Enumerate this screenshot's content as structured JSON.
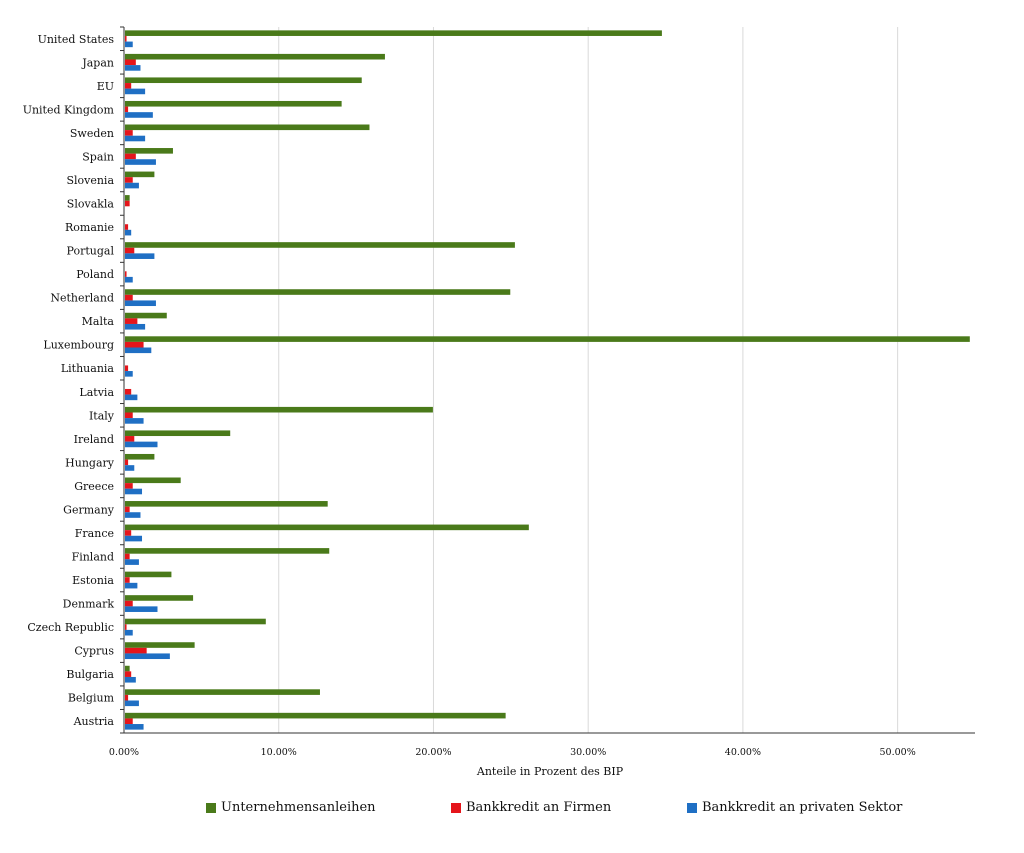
{
  "chart_data": {
    "type": "bar",
    "orientation": "horizontal",
    "title": "",
    "xlabel": "Anteile in Prozent des BIP",
    "ylabel": "",
    "xlim": [
      0,
      55
    ],
    "xticks": [
      "0.00%",
      "10.00%",
      "20.00%",
      "30.00%",
      "40.00%",
      "50.00%"
    ],
    "grid": true,
    "legend_position": "bottom",
    "categories": [
      "United States",
      "Japan",
      "EU",
      "United Kingdom",
      "Sweden",
      "Spain",
      "Slovenia",
      "Slovakla",
      "Romanie",
      "Portugal",
      "Poland",
      "Netherland",
      "Malta",
      "Luxembourg",
      "Lithuania",
      "Latvia",
      "Italy",
      "Ireland",
      "Hungary",
      "Greece",
      "Germany",
      "France",
      "Finland",
      "Estonia",
      "Denmark",
      "Czech Republic",
      "Cyprus",
      "Bulgaria",
      "Belgium",
      "Austria"
    ],
    "series": [
      {
        "name": "Unternehmensanleihen",
        "color": "#4a7a1a",
        "values": [
          34.7,
          16.8,
          15.3,
          14.0,
          15.8,
          3.1,
          1.9,
          0.3,
          0,
          25.2,
          0,
          24.9,
          2.7,
          54.6,
          0,
          0,
          19.9,
          6.8,
          1.9,
          3.6,
          13.1,
          26.1,
          13.2,
          3.0,
          4.4,
          9.1,
          4.5,
          0.3,
          12.6,
          24.6
        ]
      },
      {
        "name": "Bankkredit an Firmen",
        "color": "#e5151b",
        "values": [
          0.1,
          0.7,
          0.4,
          0.2,
          0.5,
          0.7,
          0.5,
          0.3,
          0.2,
          0.6,
          0.1,
          0.5,
          0.8,
          1.2,
          0.2,
          0.4,
          0.5,
          0.6,
          0.2,
          0.5,
          0.3,
          0.4,
          0.3,
          0.3,
          0.5,
          0.1,
          1.4,
          0.4,
          0.2,
          0.5
        ]
      },
      {
        "name": "Bankkredit an privaten Sektor",
        "color": "#1f6fc4",
        "values": [
          0.5,
          1.0,
          1.3,
          1.8,
          1.3,
          2.0,
          0.9,
          0,
          0.4,
          1.9,
          0.5,
          2.0,
          1.3,
          1.7,
          0.5,
          0.8,
          1.2,
          2.1,
          0.6,
          1.1,
          1.0,
          1.1,
          0.9,
          0.8,
          2.1,
          0.5,
          2.9,
          0.7,
          0.9,
          1.2
        ]
      }
    ]
  }
}
